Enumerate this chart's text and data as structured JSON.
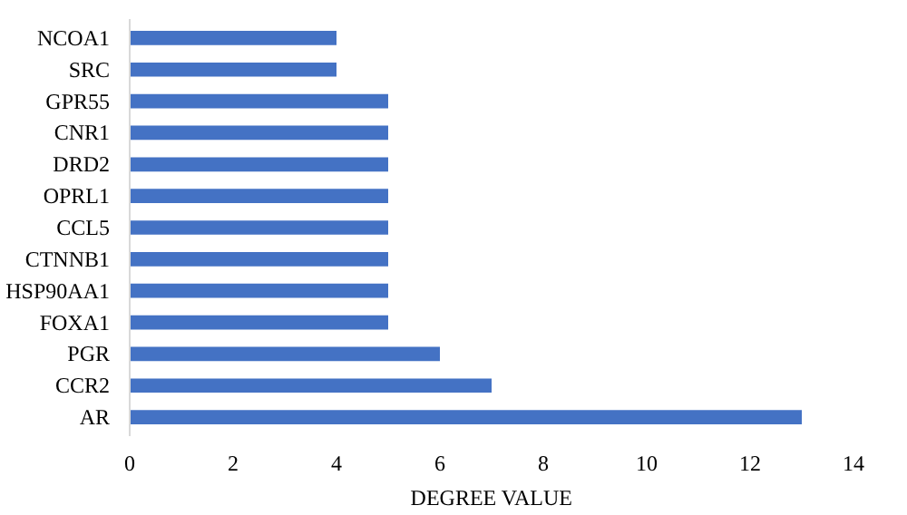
{
  "chart_data": {
    "type": "bar",
    "orientation": "horizontal",
    "xlabel": "DEGREE VALUE",
    "categories": [
      "NCOA1",
      "SRC",
      "GPR55",
      "CNR1",
      "DRD2",
      "OPRL1",
      "CCL5",
      "CTNNB1",
      "HSP90AA1",
      "FOXA1",
      "PGR",
      "CCR2",
      "AR"
    ],
    "values": [
      4,
      4,
      5,
      5,
      5,
      5,
      5,
      5,
      5,
      5,
      6,
      7,
      13
    ],
    "color": "#4472c4",
    "xlim": [
      0,
      14
    ],
    "xticks": [
      0,
      2,
      4,
      6,
      8,
      10,
      12,
      14
    ],
    "grid": false
  }
}
